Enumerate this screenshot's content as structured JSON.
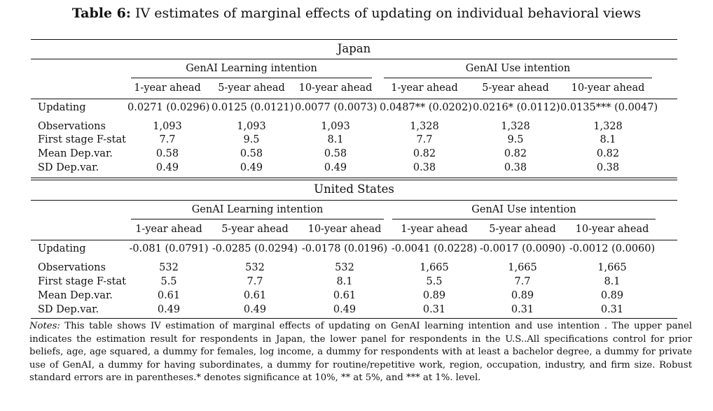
{
  "caption": {
    "label": "Table 6:",
    "text": "IV estimates of marginal effects of updating on individual behavioral views"
  },
  "groups": [
    "GenAI Learning intention",
    "GenAI Use intention"
  ],
  "columns": [
    "1-year ahead",
    "5-year ahead",
    "10-year ahead",
    "1-year ahead",
    "5-year ahead",
    "10-year ahead"
  ],
  "panels": [
    {
      "title": "Japan",
      "rows": [
        {
          "label": "Updating",
          "values": [
            "0.0271 (0.0296)",
            "0.0125 (0.0121)",
            "0.0077 (0.0073)",
            "0.0487** (0.0202)",
            "0.0216* (0.0112)",
            "0.0135*** (0.0047)"
          ]
        },
        {
          "label": "Observations",
          "values": [
            "1,093",
            "1,093",
            "1,093",
            "1,328",
            "1,328",
            "1,328"
          ]
        },
        {
          "label": "First stage F-stat",
          "values": [
            "7.7",
            "9.5",
            "8.1",
            "7.7",
            "9.5",
            "8.1"
          ]
        },
        {
          "label": "Mean Dep.var.",
          "values": [
            "0.58",
            "0.58",
            "0.58",
            "0.82",
            "0.82",
            "0.82"
          ]
        },
        {
          "label": "SD Dep.var.",
          "values": [
            "0.49",
            "0.49",
            "0.49",
            "0.38",
            "0.38",
            "0.38"
          ]
        }
      ]
    },
    {
      "title": "United States",
      "rows": [
        {
          "label": "Updating",
          "values": [
            "-0.081 (0.0791)",
            "-0.0285 (0.0294)",
            "-0.0178 (0.0196)",
            "-0.0041 (0.0228)",
            "-0.0017 (0.0090)",
            "-0.0012 (0.0060)"
          ]
        },
        {
          "label": "Observations",
          "values": [
            "532",
            "532",
            "532",
            "1,665",
            "1,665",
            "1,665"
          ]
        },
        {
          "label": "First stage F-stat",
          "values": [
            "5.5",
            "7.7",
            "8.1",
            "5.5",
            "7.7",
            "8.1"
          ]
        },
        {
          "label": "Mean Dep.var.",
          "values": [
            "0.61",
            "0.61",
            "0.61",
            "0.89",
            "0.89",
            "0.89"
          ]
        },
        {
          "label": "SD Dep.var.",
          "values": [
            "0.49",
            "0.49",
            "0.49",
            "0.31",
            "0.31",
            "0.31"
          ]
        }
      ]
    }
  ],
  "notes": {
    "label": "Notes:",
    "text": "This table shows IV estimation of marginal effects of updating on GenAI learning intention and use intention . The upper panel indicates the estimation result for respondents in Japan, the lower panel for respondents in the U.S..All specifications control for prior beliefs, age, age squared, a dummy for females, log income, a dummy for respondents with at least a bachelor degree, a dummy for private use of GenAI, a dummy for having subordinates, a dummy for routine/repetitive work, region, occupation, industry, and firm size. Robust standard errors are in parentheses.* denotes significance at 10%, ** at 5%, and *** at 1%. level."
  }
}
